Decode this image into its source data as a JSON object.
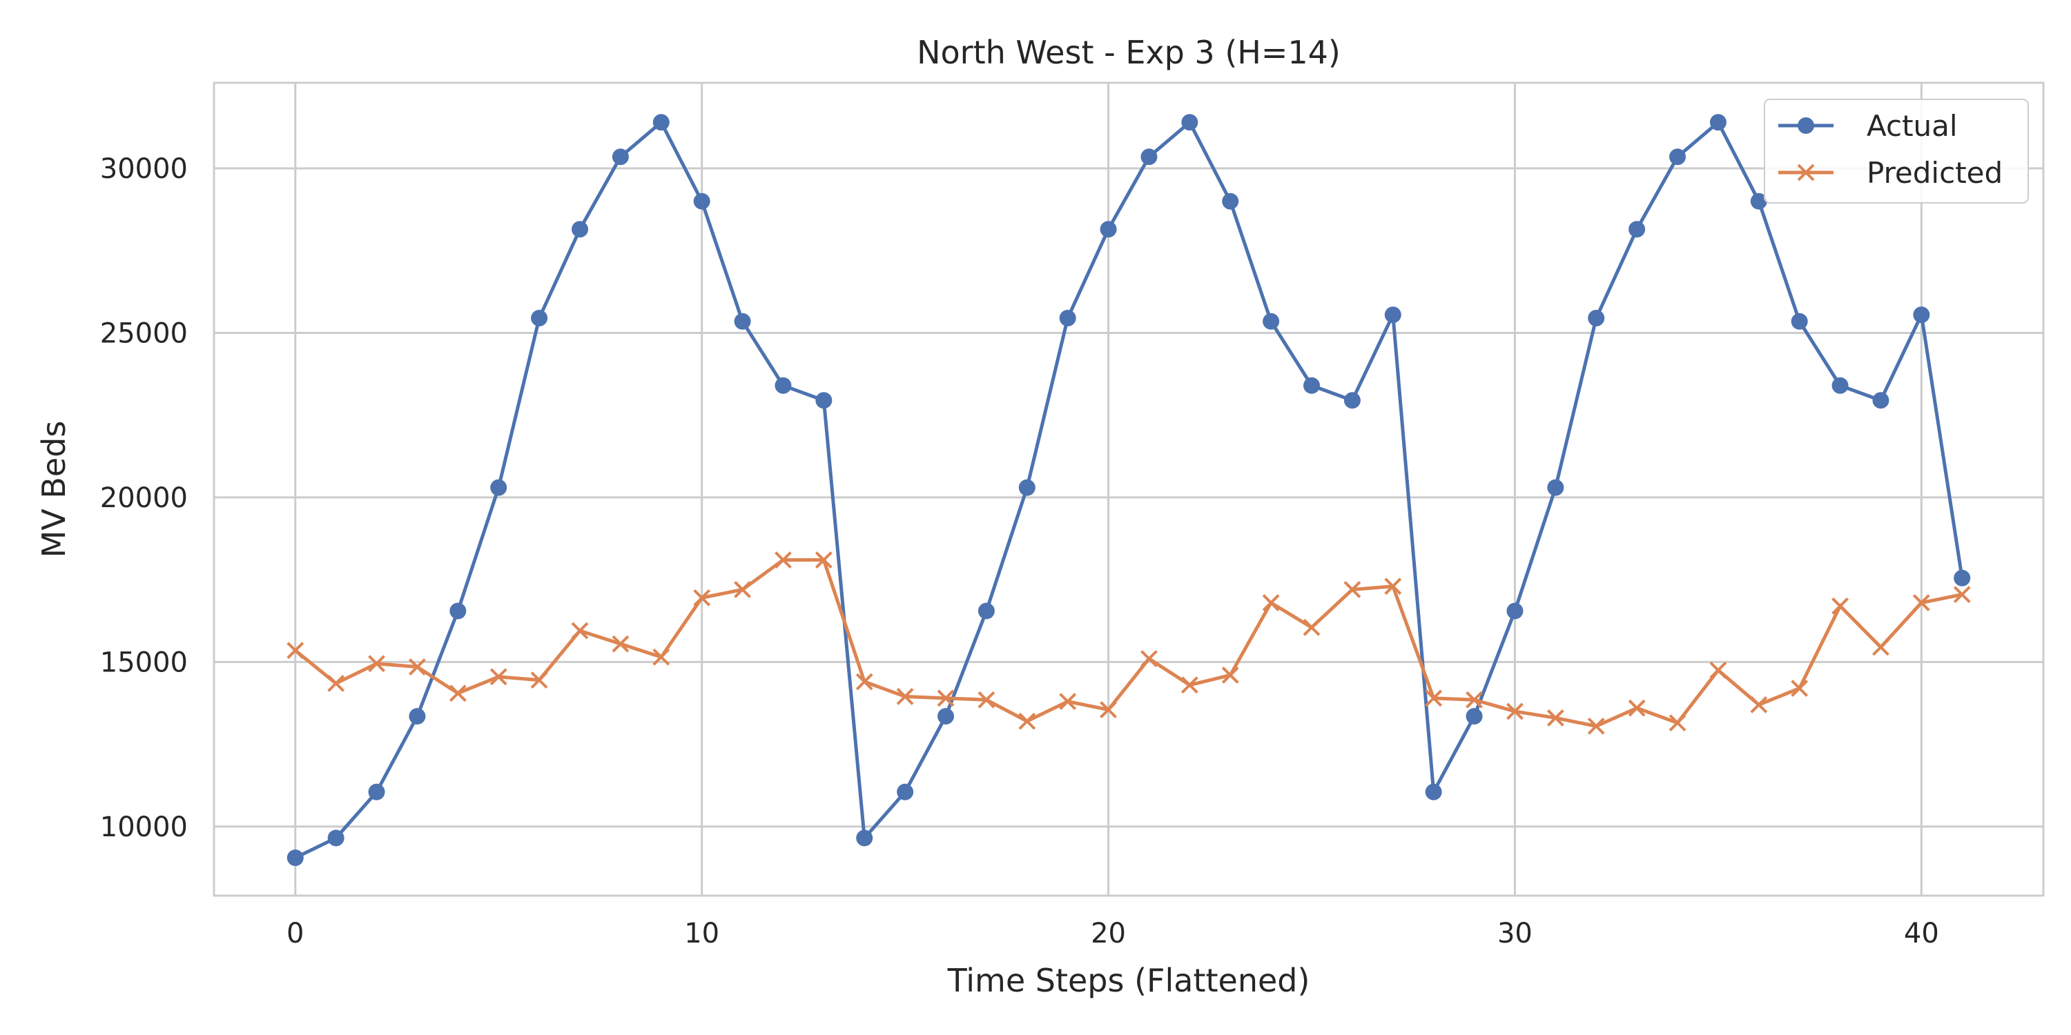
{
  "chart_data": {
    "type": "line",
    "title": "North West - Exp 3 (H=14)",
    "xlabel": "Time Steps (Flattened)",
    "ylabel": "MV Beds",
    "xlim": [
      -2,
      43
    ],
    "ylim": [
      7900,
      32600
    ],
    "xticks": [
      0,
      10,
      20,
      30,
      40
    ],
    "yticks": [
      10000,
      15000,
      20000,
      25000,
      30000
    ],
    "grid": true,
    "legend_position": "top-right",
    "x": [
      0,
      1,
      2,
      3,
      4,
      5,
      6,
      7,
      8,
      9,
      10,
      11,
      12,
      13,
      14,
      15,
      16,
      17,
      18,
      19,
      20,
      21,
      22,
      23,
      24,
      25,
      26,
      27,
      28,
      29,
      30,
      31,
      32,
      33,
      34,
      35,
      36,
      37,
      38,
      39,
      40,
      41
    ],
    "series": [
      {
        "name": "Actual",
        "color": "#4c72b0",
        "marker": "circle",
        "values": [
          9050,
          9650,
          11050,
          13350,
          16550,
          20300,
          25450,
          28150,
          30350,
          31400,
          29000,
          25350,
          23400,
          22950,
          9650,
          11050,
          13350,
          16550,
          20300,
          25450,
          28150,
          30350,
          31400,
          29000,
          25350,
          23400,
          22950,
          25550,
          11050,
          13350,
          16550,
          20300,
          25450,
          28150,
          30350,
          31400,
          29000,
          25350,
          23400,
          22950,
          25550,
          17550
        ]
      },
      {
        "name": "Predicted",
        "color": "#dd8452",
        "marker": "x",
        "values": [
          15350,
          14350,
          14950,
          14850,
          14050,
          14550,
          14450,
          15950,
          15550,
          15150,
          16950,
          17200,
          18100,
          18100,
          14400,
          13950,
          13900,
          13850,
          13200,
          13800,
          13550,
          15100,
          14300,
          14600,
          16800,
          16050,
          17200,
          17300,
          13900,
          13850,
          13500,
          13300,
          13050,
          13600,
          13150,
          14750,
          13700,
          14200,
          16700,
          15450,
          16800,
          17050
        ]
      }
    ]
  }
}
